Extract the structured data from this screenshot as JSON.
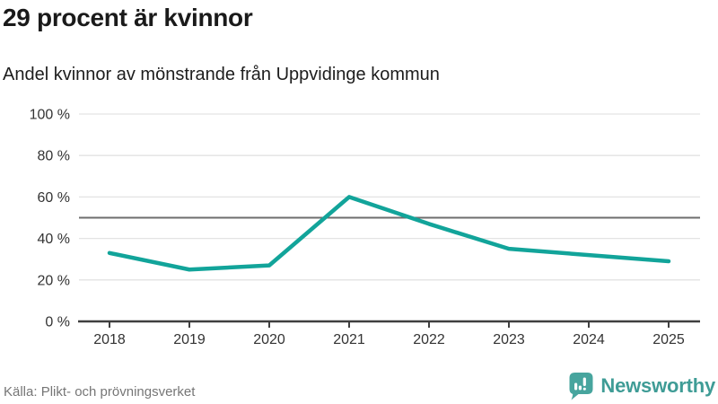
{
  "header": {
    "title": "29 procent är kvinnor",
    "subtitle": "Andel kvinnor av mönstrande från Uppvidinge kommun"
  },
  "chart_data": {
    "type": "line",
    "title": "29 procent är kvinnor",
    "subtitle": "Andel kvinnor av mönstrande från Uppvidinge kommun",
    "categories": [
      "2018",
      "2019",
      "2020",
      "2021",
      "2022",
      "2023",
      "2024",
      "2025"
    ],
    "series": [
      {
        "name": "Andel kvinnor av mönstrande",
        "values": [
          33,
          25,
          27,
          60,
          47,
          35,
          32,
          29
        ]
      }
    ],
    "ylim": [
      0,
      100
    ],
    "yticks": [
      0,
      20,
      40,
      60,
      80,
      100
    ],
    "ytick_labels": [
      "0 %",
      "20 %",
      "40 %",
      "60 %",
      "80 %",
      "100 %"
    ],
    "xlabel": "",
    "ylabel": "",
    "reference_line": 50,
    "grid": true,
    "legend": "none"
  },
  "footer": {
    "source": "Källa: Plikt- och prövningsverket",
    "brand": "Newsworthy"
  },
  "colors": {
    "line": "#12a49a",
    "reference_line": "#6e6e6e",
    "grid": "#e3e3e3",
    "axis": "#3f3f3f",
    "tick_label": "#333333",
    "title": "#1a1a1a",
    "source_text": "#767676",
    "logo_teal": "#47a59e",
    "brand_text": "#3f9c96"
  }
}
